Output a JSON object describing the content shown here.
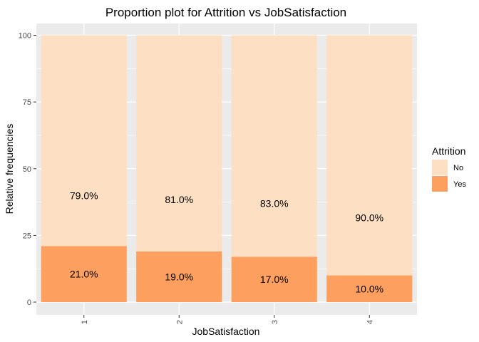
{
  "chart_data": {
    "type": "bar",
    "stacked": true,
    "title": "Proportion plot for Attrition vs JobSatisfaction",
    "xlabel": "JobSatisfaction",
    "ylabel": "Relative frequencies",
    "categories": [
      "1",
      "2",
      "3",
      "4"
    ],
    "ylim": [
      0,
      100
    ],
    "yticks": [
      0,
      25,
      50,
      75,
      100
    ],
    "grid": true,
    "series": [
      {
        "name": "Yes",
        "color": "#fda05f",
        "values": [
          21,
          19,
          17,
          10
        ],
        "labels": [
          "21.0%",
          "19.0%",
          "17.0%",
          "10.0%"
        ]
      },
      {
        "name": "No",
        "color": "#fddfc3",
        "values": [
          79,
          81,
          83,
          90
        ],
        "labels": [
          "79.0%",
          "81.0%",
          "83.0%",
          "90.0%"
        ]
      }
    ],
    "legend": {
      "title": "Attrition",
      "position": "right",
      "entries": [
        "No",
        "Yes"
      ]
    }
  }
}
